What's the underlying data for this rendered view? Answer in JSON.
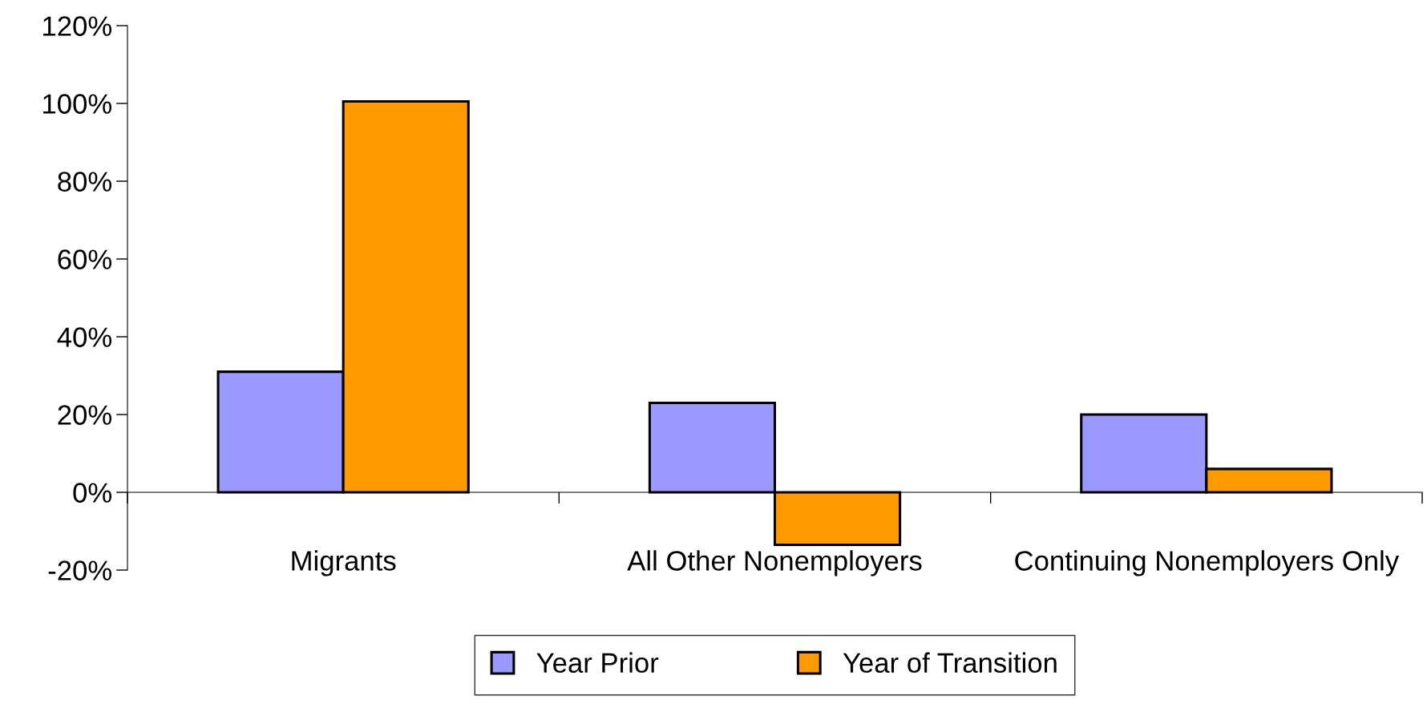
{
  "chart_data": {
    "type": "bar",
    "categories": [
      "Migrants",
      "All Other Nonemployers",
      "Continuing Nonemployers Only"
    ],
    "series": [
      {
        "name": "Year Prior",
        "color": "#9999ff",
        "values": [
          31,
          23,
          20
        ]
      },
      {
        "name": "Year of Transition",
        "color": "#ff9900",
        "values": [
          100.5,
          -13.5,
          6
        ]
      }
    ],
    "ylim": [
      -20,
      120
    ],
    "yticks": [
      {
        "value": -20,
        "label": "-20%"
      },
      {
        "value": 0,
        "label": "0%"
      },
      {
        "value": 20,
        "label": "20%"
      },
      {
        "value": 40,
        "label": "40%"
      },
      {
        "value": 60,
        "label": "60%"
      },
      {
        "value": 80,
        "label": "80%"
      },
      {
        "value": 100,
        "label": "100%"
      },
      {
        "value": 120,
        "label": "120%"
      }
    ],
    "grid": false,
    "legend": "bottom"
  }
}
